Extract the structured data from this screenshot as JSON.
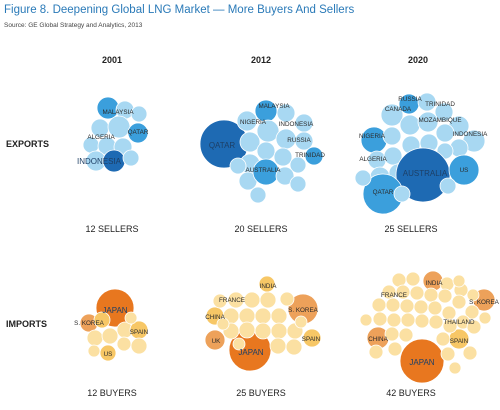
{
  "title": "Figure 8. Deepening Global LNG Market — More Buyers And Sellers",
  "source": "Source: GE Global Strategy and Analytics, 2013",
  "colors": {
    "export_dark": "#1e6ab3",
    "export_mid": "#3b9fdc",
    "export_light": "#a8d8f2",
    "import_dark": "#e8771f",
    "import_mid": "#eda15a",
    "import_light": "#f7c766",
    "import_pale": "#fbe0a2"
  },
  "chart_data": {
    "type": "bubble-cluster",
    "years": [
      "2001",
      "2012",
      "2020"
    ],
    "rows": [
      "EXPORTS",
      "IMPORTS"
    ],
    "panels": [
      {
        "row": "EXPORTS",
        "year": "2001",
        "count_label": "12 SELLERS",
        "count": 12,
        "labels": [
          {
            "name": "MALAYSIA"
          },
          {
            "name": "ALGERIA"
          },
          {
            "name": "QATAR"
          },
          {
            "name": "INDONESIA"
          }
        ]
      },
      {
        "row": "EXPORTS",
        "year": "2012",
        "count_label": "20 SELLERS",
        "count": 20,
        "labels": [
          {
            "name": "MALAYSIA"
          },
          {
            "name": "NIGERIA"
          },
          {
            "name": "INDONESIA"
          },
          {
            "name": "QATAR"
          },
          {
            "name": "RUSSIA"
          },
          {
            "name": "TRINIDAD"
          },
          {
            "name": "AUSTRALIA"
          }
        ]
      },
      {
        "row": "EXPORTS",
        "year": "2020",
        "count_label": "25 SELLERS",
        "count": 25,
        "labels": [
          {
            "name": "RUSSIA"
          },
          {
            "name": "CANADA"
          },
          {
            "name": "TRINIDAD"
          },
          {
            "name": "MOZAMBIQUE"
          },
          {
            "name": "NIGERIA"
          },
          {
            "name": "INDONESIA"
          },
          {
            "name": "ALGERIA"
          },
          {
            "name": "AUSTRALIA"
          },
          {
            "name": "US"
          },
          {
            "name": "QATAR"
          }
        ]
      },
      {
        "row": "IMPORTS",
        "year": "2001",
        "count_label": "12 BUYERS",
        "count": 12,
        "labels": [
          {
            "name": "JAPAN"
          },
          {
            "name": "S. KOREA"
          },
          {
            "name": "SPAIN"
          },
          {
            "name": "US"
          }
        ]
      },
      {
        "row": "IMPORTS",
        "year": "2012",
        "count_label": "25 BUYERS",
        "count": 25,
        "labels": [
          {
            "name": "INDIA"
          },
          {
            "name": "FRANCE"
          },
          {
            "name": "S. KOREA"
          },
          {
            "name": "CHINA"
          },
          {
            "name": "SPAIN"
          },
          {
            "name": "UK"
          },
          {
            "name": "JAPAN"
          }
        ]
      },
      {
        "row": "IMPORTS",
        "year": "2020",
        "count_label": "42 BUYERS",
        "count": 42,
        "labels": [
          {
            "name": "INDIA"
          },
          {
            "name": "FRANCE"
          },
          {
            "name": "S. KOREA"
          },
          {
            "name": "THAILAND"
          },
          {
            "name": "CHINA"
          },
          {
            "name": "SPAIN"
          },
          {
            "name": "JAPAN"
          }
        ]
      }
    ]
  }
}
